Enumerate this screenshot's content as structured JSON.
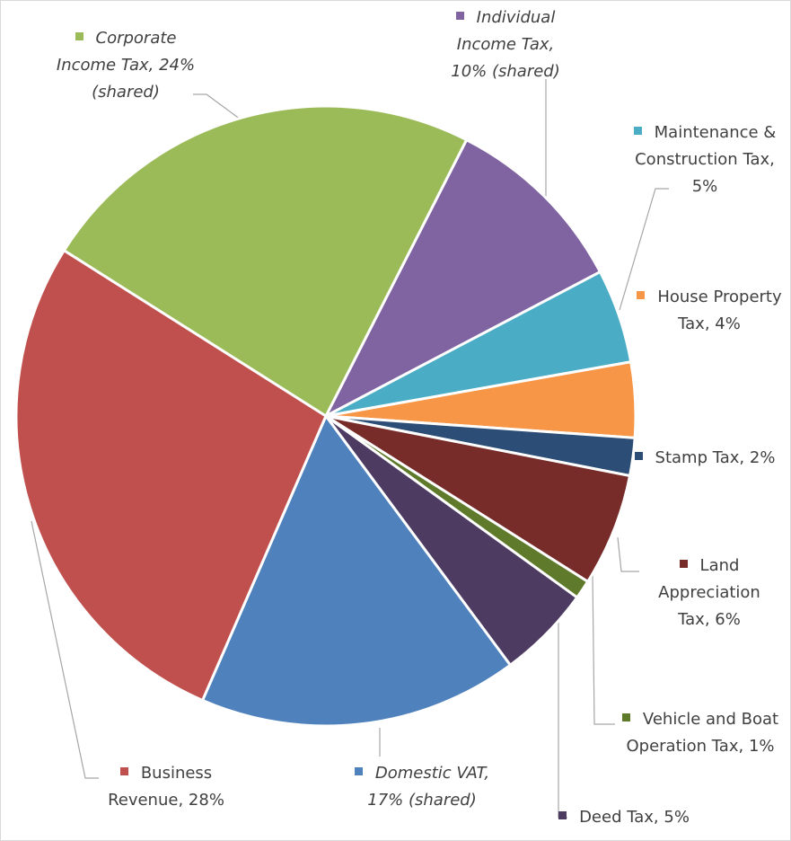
{
  "chart_data": {
    "type": "pie",
    "categories": [
      "Individual Income Tax,",
      "Maintenance & Construction Tax,",
      "House Property Tax,",
      "Stamp Tax,",
      "Land Appreciation Tax,",
      "Vehicle and Boat Operation Tax,",
      "Deed Tax,",
      "Domestic VAT,",
      "Business Revenue,",
      "Corporate Income Tax,"
    ],
    "values": [
      10,
      5,
      4,
      2,
      6,
      1,
      5,
      17,
      28,
      24
    ],
    "value_labels": [
      "10% (shared)",
      "5%",
      "4%",
      "2%",
      "6%",
      "1%",
      "5%",
      "17% (shared)",
      "28%",
      "24% (shared)"
    ],
    "colors": [
      "#8064a2",
      "#4bacc6",
      "#f79646",
      "#2c4d75",
      "#772c2a",
      "#5e7a2a",
      "#4d3b62",
      "#4f81bd",
      "#c0504d",
      "#9bbb59"
    ]
  }
}
